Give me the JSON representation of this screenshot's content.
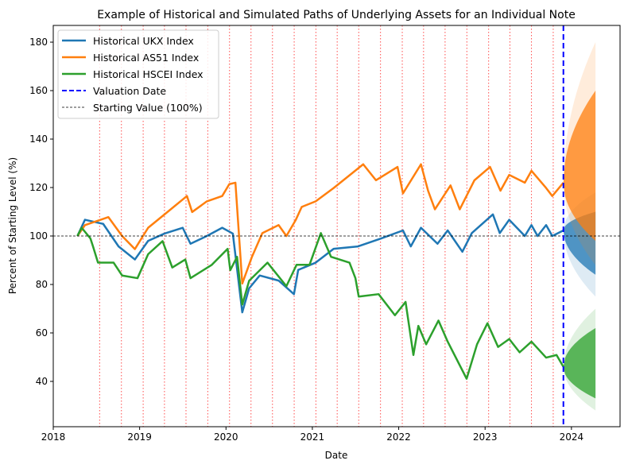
{
  "chart_data": {
    "type": "line",
    "title": "Example of Historical and Simulated Paths of Underlying Assets for an Individual Note",
    "xlabel": "Date",
    "ylabel": "Percent of Starting Level (%)",
    "xlim": [
      "2018-01-01",
      "2024-07-25"
    ],
    "ylim": [
      21.3,
      186.9
    ],
    "xticks": [
      "2018",
      "2019",
      "2020",
      "2021",
      "2022",
      "2023",
      "2024"
    ],
    "yticks": [
      40,
      60,
      80,
      100,
      120,
      140,
      160,
      180
    ],
    "grid": false,
    "legend_placement": "top-left",
    "series": [
      {
        "name": "Historical UKX Index",
        "color": "#1f77b4",
        "points": [
          [
            "2018-04-13",
            100
          ],
          [
            "2018-05-15",
            106.7
          ],
          [
            "2018-07-31",
            105
          ],
          [
            "2018-10-04",
            95.7
          ],
          [
            "2018-12-12",
            90.3
          ],
          [
            "2019-02-06",
            98
          ],
          [
            "2019-04-16",
            101
          ],
          [
            "2019-07-02",
            103.4
          ],
          [
            "2019-08-04",
            96.8
          ],
          [
            "2019-10-12",
            100
          ],
          [
            "2019-12-16",
            103.4
          ],
          [
            "2020-01-30",
            101
          ],
          [
            "2020-03-10",
            68.5
          ],
          [
            "2020-04-08",
            78.4
          ],
          [
            "2020-05-23",
            83.7
          ],
          [
            "2020-08-11",
            81.6
          ],
          [
            "2020-10-15",
            76
          ],
          [
            "2020-11-02",
            86
          ],
          [
            "2021-01-15",
            89
          ],
          [
            "2021-04-01",
            94.7
          ],
          [
            "2021-07-13",
            95.7
          ],
          [
            "2021-10-19",
            99
          ],
          [
            "2022-01-19",
            102.3
          ],
          [
            "2022-02-21",
            95.7
          ],
          [
            "2022-04-05",
            103.4
          ],
          [
            "2022-06-14",
            96.8
          ],
          [
            "2022-07-27",
            102.3
          ],
          [
            "2022-09-27",
            93.5
          ],
          [
            "2022-11-06",
            101.2
          ],
          [
            "2023-02-03",
            108.9
          ],
          [
            "2023-03-04",
            101.2
          ],
          [
            "2023-04-13",
            106.7
          ],
          [
            "2023-06-18",
            100
          ],
          [
            "2023-07-16",
            104.5
          ],
          [
            "2023-08-11",
            100
          ],
          [
            "2023-09-16",
            104.5
          ],
          [
            "2023-10-12",
            100
          ],
          [
            "2023-11-28",
            102.3
          ]
        ]
      },
      {
        "name": "Historical AS51 Index",
        "color": "#ff7f0e",
        "points": [
          [
            "2018-04-13",
            100
          ],
          [
            "2018-05-15",
            104.5
          ],
          [
            "2018-08-22",
            107.8
          ],
          [
            "2018-10-19",
            100
          ],
          [
            "2018-12-12",
            94.6
          ],
          [
            "2019-02-06",
            103.4
          ],
          [
            "2019-04-16",
            108.9
          ],
          [
            "2019-07-20",
            116.5
          ],
          [
            "2019-08-11",
            109.9
          ],
          [
            "2019-10-12",
            114.3
          ],
          [
            "2019-12-16",
            116.5
          ],
          [
            "2020-01-15",
            121.4
          ],
          [
            "2020-02-10",
            122
          ],
          [
            "2020-03-10",
            80.4
          ],
          [
            "2020-04-20",
            91.4
          ],
          [
            "2020-06-03",
            101.2
          ],
          [
            "2020-08-11",
            104.5
          ],
          [
            "2020-09-13",
            100
          ],
          [
            "2020-10-23",
            106.7
          ],
          [
            "2020-11-17",
            112
          ],
          [
            "2021-01-15",
            114.3
          ],
          [
            "2021-04-01",
            119.8
          ],
          [
            "2021-08-04",
            129.6
          ],
          [
            "2021-09-27",
            123
          ],
          [
            "2021-12-27",
            128.5
          ],
          [
            "2022-01-19",
            117.6
          ],
          [
            "2022-04-05",
            129.6
          ],
          [
            "2022-05-05",
            118.7
          ],
          [
            "2022-06-03",
            111
          ],
          [
            "2022-08-08",
            120.9
          ],
          [
            "2022-09-16",
            111
          ],
          [
            "2022-11-17",
            123
          ],
          [
            "2023-01-22",
            128.5
          ],
          [
            "2023-03-07",
            118.7
          ],
          [
            "2023-04-13",
            125.2
          ],
          [
            "2023-06-18",
            122
          ],
          [
            "2023-07-16",
            126.9
          ],
          [
            "2023-09-16",
            119.8
          ],
          [
            "2023-10-12",
            116.5
          ],
          [
            "2023-11-28",
            122
          ]
        ]
      },
      {
        "name": "Historical HSCEI Index",
        "color": "#2ca02c",
        "points": [
          [
            "2018-04-13",
            100
          ],
          [
            "2018-05-01",
            103.4
          ],
          [
            "2018-06-07",
            99
          ],
          [
            "2018-06-18",
            95.7
          ],
          [
            "2018-07-09",
            89
          ],
          [
            "2018-09-13",
            89
          ],
          [
            "2018-10-19",
            83.7
          ],
          [
            "2018-12-23",
            82.6
          ],
          [
            "2019-02-06",
            92.5
          ],
          [
            "2019-04-08",
            97.9
          ],
          [
            "2019-05-19",
            87
          ],
          [
            "2019-07-13",
            90.3
          ],
          [
            "2019-08-04",
            82.6
          ],
          [
            "2019-11-02",
            88.1
          ],
          [
            "2020-01-08",
            94.7
          ],
          [
            "2020-01-19",
            85.9
          ],
          [
            "2020-02-17",
            91.4
          ],
          [
            "2020-03-10",
            71.7
          ],
          [
            "2020-04-08",
            81.5
          ],
          [
            "2020-06-25",
            89
          ],
          [
            "2020-09-13",
            79.3
          ],
          [
            "2020-10-26",
            88.1
          ],
          [
            "2020-12-20",
            88.1
          ],
          [
            "2021-02-06",
            101.2
          ],
          [
            "2021-03-21",
            91.4
          ],
          [
            "2021-06-07",
            89
          ],
          [
            "2021-07-02",
            82.6
          ],
          [
            "2021-07-16",
            75
          ],
          [
            "2021-10-08",
            76
          ],
          [
            "2021-12-16",
            67.3
          ],
          [
            "2022-01-30",
            72.8
          ],
          [
            "2022-03-04",
            50.9
          ],
          [
            "2022-03-25",
            62.9
          ],
          [
            "2022-04-27",
            55.3
          ],
          [
            "2022-06-18",
            65.1
          ],
          [
            "2022-07-27",
            56.4
          ],
          [
            "2022-10-15",
            41.1
          ],
          [
            "2022-11-28",
            55.3
          ],
          [
            "2023-01-11",
            64
          ],
          [
            "2023-02-25",
            54.2
          ],
          [
            "2023-04-13",
            57.5
          ],
          [
            "2023-05-27",
            52
          ],
          [
            "2023-07-16",
            56.4
          ],
          [
            "2023-09-16",
            49.8
          ],
          [
            "2023-10-30",
            50.9
          ],
          [
            "2023-11-28",
            46
          ]
        ]
      }
    ],
    "simulated_paths": [
      {
        "color": "#1f77b4",
        "start": 102.3,
        "end_range": [
          75,
          118
        ],
        "dense_end_range": [
          84,
          110
        ]
      },
      {
        "color": "#ff7f0e",
        "start": 122,
        "end_range": [
          88,
          180
        ],
        "dense_end_range": [
          98,
          160
        ]
      },
      {
        "color": "#2ca02c",
        "start": 46,
        "end_range": [
          28,
          70
        ],
        "dense_end_range": [
          33,
          62
        ]
      }
    ],
    "simulation_end": "2024-04-12",
    "valuation_date": {
      "label": "Valuation Date",
      "date": "2023-11-28",
      "color": "#0000ff"
    },
    "starting_value": {
      "label": "Starting Value (100%)",
      "value": 100,
      "color": "#000000"
    },
    "observation_dates": {
      "color": "#ff0000",
      "dates": [
        "2018-07-16",
        "2018-10-16",
        "2019-01-16",
        "2019-04-16",
        "2019-07-16",
        "2019-10-16",
        "2020-01-16",
        "2020-04-16",
        "2020-07-16",
        "2020-10-16",
        "2021-01-16",
        "2021-04-16",
        "2021-07-16",
        "2021-10-16",
        "2022-01-16",
        "2022-04-16",
        "2022-07-16",
        "2022-10-16",
        "2023-01-16",
        "2023-04-16",
        "2023-07-16",
        "2023-10-16"
      ]
    }
  }
}
